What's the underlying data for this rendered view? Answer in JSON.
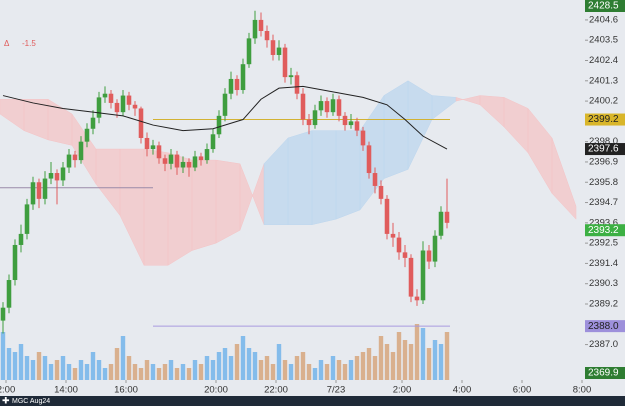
{
  "chart_data": {
    "type": "candlestick",
    "symbol": "MGC Aug24",
    "delta_label": "Δ",
    "delta": -1.5,
    "xlim": [
      0,
      97.5
    ],
    "xticks": [
      {
        "value": 1,
        "label": "2:00"
      },
      {
        "value": 11,
        "label": "14:00"
      },
      {
        "value": 21,
        "label": "16:00"
      },
      {
        "value": 36,
        "label": "20:00"
      },
      {
        "value": 46,
        "label": "22:00"
      },
      {
        "value": 56,
        "label": "7/23"
      },
      {
        "value": 67,
        "label": "2:00"
      },
      {
        "value": 77,
        "label": "4:00"
      },
      {
        "value": 87,
        "label": "6:00"
      },
      {
        "value": 97,
        "label": "8:00"
      }
    ],
    "ylim": [
      2385.08,
      2405.68
    ],
    "yticks": [
      2404.6,
      2403.5,
      2402.4,
      2401.3,
      2400.2,
      {
        "value": 2398,
        "label": "2398.0"
      },
      2396.9,
      2395.8,
      2394.7,
      2393.6,
      2392.5,
      2391.4,
      2390.3,
      2389.2,
      {
        "value": 2387,
        "label": "2387.0"
      }
    ],
    "up_color": "#3f9e3f",
    "down_color": "#e05c5c",
    "open": [
      2388.3,
      2389.0,
      2390.5,
      2392.4,
      2393.0,
      2394.6,
      2395.8,
      2394.9,
      2396.0,
      2396.3,
      2395.9,
      2396.6,
      2397.3,
      2397.0,
      2398.0,
      2398.7,
      2399.3,
      2400.4,
      2400.6,
      2400.1,
      2399.6,
      2400.5,
      2400.0,
      2399.8,
      2398.2,
      2397.6,
      2397.8,
      2397.1,
      2396.8,
      2397.3,
      2396.6,
      2396.9,
      2396.6,
      2397.2,
      2397.0,
      2397.6,
      2398.4,
      2399.4,
      2400.6,
      2401.4,
      2400.8,
      2402.2,
      2403.6,
      2404.6,
      2404.0,
      2403.5,
      2402.7,
      2403.1,
      2401.5,
      2401.6,
      2400.6,
      2399.2,
      2398.9,
      2399.7,
      2400.2,
      2399.6,
      2400.3,
      2399.4,
      2398.9,
      2399.1,
      2398.6,
      2397.8,
      2396.3,
      2395.6,
      2394.9,
      2393.0,
      2392.8,
      2392.0,
      2391.7,
      2389.6,
      2389.4,
      2392.1,
      2391.5,
      2392.9,
      2394.2
    ],
    "high": [
      2389.3,
      2390.8,
      2392.7,
      2393.5,
      2394.9,
      2396.1,
      2396.0,
      2396.4,
      2396.9,
      2396.5,
      2396.9,
      2397.6,
      2397.5,
      2398.3,
      2399.0,
      2399.7,
      2400.7,
      2401.0,
      2400.8,
      2400.3,
      2400.8,
      2400.7,
      2400.2,
      2399.9,
      2398.5,
      2398.1,
      2398.0,
      2397.3,
      2397.6,
      2397.5,
      2397.2,
      2397.1,
      2397.5,
      2397.4,
      2397.9,
      2398.7,
      2399.7,
      2400.9,
      2401.8,
      2401.6,
      2402.5,
      2403.9,
      2405.1,
      2405.0,
      2404.3,
      2403.8,
      2403.5,
      2403.3,
      2402.0,
      2401.8,
      2400.9,
      2399.5,
      2400.0,
      2400.5,
      2400.4,
      2400.6,
      2400.5,
      2399.6,
      2399.5,
      2399.3,
      2398.8,
      2398.0,
      2396.6,
      2395.9,
      2395.1,
      2393.6,
      2393.1,
      2392.4,
      2391.9,
      2390.0,
      2392.6,
      2392.4,
      2393.2,
      2394.5,
      2396.0
    ],
    "low": [
      2387.6,
      2388.7,
      2390.2,
      2392.0,
      2392.7,
      2394.3,
      2394.4,
      2394.6,
      2395.7,
      2394.6,
      2395.6,
      2396.3,
      2396.6,
      2396.8,
      2397.7,
      2398.4,
      2399.0,
      2400.1,
      2399.8,
      2399.3,
      2399.4,
      2399.7,
      2399.4,
      2397.9,
      2397.2,
      2397.3,
      2396.8,
      2396.4,
      2396.5,
      2396.2,
      2396.3,
      2396.1,
      2396.4,
      2396.7,
      2396.8,
      2397.4,
      2398.2,
      2399.1,
      2400.3,
      2400.5,
      2400.6,
      2402.0,
      2403.3,
      2403.7,
      2403.1,
      2402.4,
      2402.4,
      2401.2,
      2401.1,
      2400.3,
      2398.9,
      2398.4,
      2398.7,
      2399.4,
      2399.3,
      2399.4,
      2399.1,
      2398.6,
      2398.7,
      2398.3,
      2397.5,
      2396.0,
      2395.2,
      2394.6,
      2392.7,
      2392.3,
      2391.6,
      2391.2,
      2389.3,
      2389.1,
      2389.2,
      2391.1,
      2391.2,
      2392.7,
      2393.3
    ],
    "close": [
      2389.0,
      2390.5,
      2392.4,
      2393.0,
      2394.6,
      2395.8,
      2394.9,
      2396.0,
      2396.3,
      2395.9,
      2396.6,
      2397.3,
      2397.0,
      2398.0,
      2398.7,
      2399.3,
      2400.4,
      2400.6,
      2400.1,
      2399.6,
      2400.5,
      2400.0,
      2399.8,
      2398.2,
      2397.6,
      2397.8,
      2397.1,
      2396.8,
      2397.3,
      2396.6,
      2396.9,
      2396.6,
      2397.2,
      2397.0,
      2397.6,
      2398.4,
      2399.4,
      2400.6,
      2401.4,
      2400.8,
      2402.2,
      2403.6,
      2404.6,
      2404.0,
      2403.5,
      2402.7,
      2403.1,
      2401.5,
      2401.6,
      2400.6,
      2399.2,
      2398.9,
      2399.7,
      2400.2,
      2399.6,
      2400.3,
      2399.4,
      2398.9,
      2399.1,
      2398.6,
      2397.8,
      2396.3,
      2395.6,
      2394.9,
      2393.0,
      2392.8,
      2392.0,
      2391.7,
      2389.6,
      2389.4,
      2392.1,
      2391.5,
      2392.9,
      2394.2,
      2393.6
    ],
    "volume": [
      60,
      40,
      35,
      45,
      30,
      25,
      35,
      30,
      20,
      25,
      30,
      20,
      15,
      25,
      20,
      35,
      25,
      15,
      20,
      40,
      55,
      30,
      20,
      15,
      25,
      20,
      15,
      20,
      25,
      15,
      20,
      15,
      25,
      20,
      30,
      25,
      35,
      40,
      30,
      45,
      55,
      40,
      35,
      25,
      30,
      20,
      45,
      25,
      20,
      30,
      35,
      20,
      15,
      25,
      20,
      30,
      25,
      20,
      25,
      30,
      35,
      40,
      30,
      55,
      45,
      35,
      60,
      50,
      45,
      70,
      65,
      40,
      50,
      45,
      60
    ],
    "vlim": [
      0,
      100
    ],
    "volume_up_color": "#72b4ea",
    "volume_down_color": "#d6a67c",
    "moving_average": {
      "color": "#222222",
      "x": [
        0,
        5,
        10,
        15,
        20,
        25,
        30,
        35,
        40,
        43,
        46,
        50,
        55,
        60,
        64,
        67,
        70,
        74
      ],
      "values": [
        2400.5,
        2400.1,
        2399.8,
        2399.6,
        2399.4,
        2398.9,
        2398.6,
        2398.7,
        2399.2,
        2400.3,
        2400.9,
        2401.0,
        2400.7,
        2400.4,
        2400.0,
        2399.2,
        2398.3,
        2397.6
      ]
    },
    "cloud": {
      "bear_color": "#f4c4c6",
      "bull_color": "#bcd6ee",
      "x": [
        0,
        4,
        8,
        12,
        16,
        20,
        24,
        28,
        32,
        36,
        40,
        44,
        48,
        52,
        56,
        60,
        64,
        68,
        72,
        76,
        80,
        84,
        88,
        92,
        96
      ],
      "span_a": [
        2399.5,
        2398.6,
        2398.1,
        2397.8,
        2395.7,
        2394.0,
        2391.3,
        2391.3,
        2392.1,
        2392.5,
        2393.2,
        2396.8,
        2398.2,
        2398.6,
        2398.6,
        2398.6,
        2400.5,
        2401.3,
        2400.5,
        2400.4,
        2400.0,
        2398.8,
        2397.4,
        2395.2,
        2393.8
      ],
      "span_b": [
        2400.3,
        2400.3,
        2400.3,
        2399.5,
        2397.6,
        2397.6,
        2397.6,
        2397.4,
        2397.0,
        2397.0,
        2396.8,
        2393.5,
        2393.5,
        2393.5,
        2393.8,
        2394.3,
        2396.0,
        2396.5,
        2399.2,
        2400.2,
        2400.5,
        2400.4,
        2399.8,
        2398.2,
        2394.5
      ]
    },
    "levels": [
      {
        "value": 2399.2,
        "color": "#d2b233"
      },
      {
        "value": 2388.0,
        "color": "#a89adf"
      },
      {
        "value": 2395.5,
        "color": "#9a8aa8"
      }
    ],
    "badges": [
      {
        "value": 2399.2,
        "label": "2399.2",
        "color": "#d9b62a",
        "text_color": "#222222"
      },
      {
        "value": 2397.6,
        "label": "2397.6",
        "color": "#222222",
        "text_color": "#ffffff"
      },
      {
        "value": 2393.2,
        "label": "2393.2",
        "color": "#3cb043",
        "text_color": "#ffffff"
      },
      {
        "value": 2388.0,
        "label": "2388.0",
        "color": "#9d90db",
        "text_color": "#222222"
      }
    ],
    "top_badge": {
      "value": 2428.5,
      "color": "#2e7d32"
    },
    "bottom_badge": {
      "value": 2369.9,
      "color": "#2e7d32"
    }
  }
}
